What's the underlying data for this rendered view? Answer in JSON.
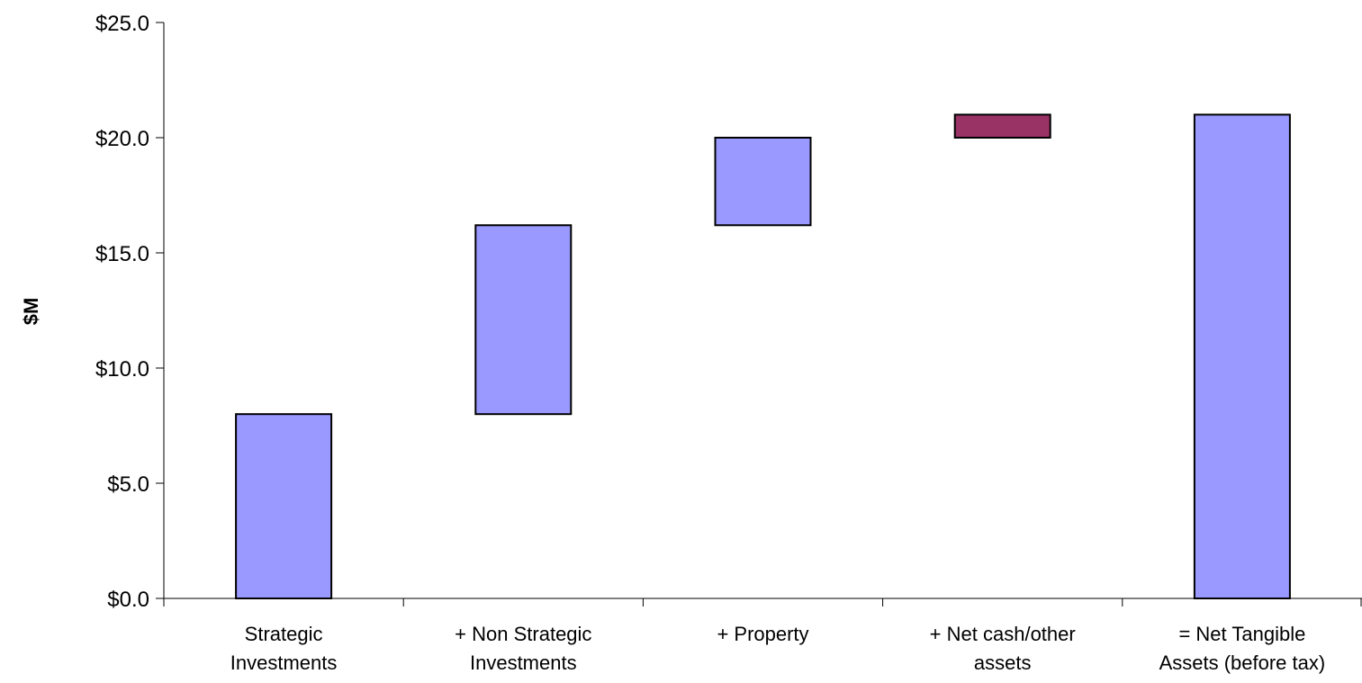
{
  "chart_data": {
    "type": "bar",
    "subtype": "waterfall",
    "title": "",
    "xlabel": "",
    "ylabel": "$M",
    "ylim": [
      0,
      25
    ],
    "yticks": [
      0,
      5,
      10,
      15,
      20,
      25
    ],
    "ytick_labels": [
      "$0.0",
      "$5.0",
      "$10.0",
      "$15.0",
      "$20.0",
      "$25.0"
    ],
    "grid": false,
    "legend": "none",
    "categories": [
      [
        "Strategic",
        "Investments"
      ],
      [
        "+ Non Strategic",
        "Investments"
      ],
      [
        "+ Property"
      ],
      [
        "+ Net cash/other",
        "assets"
      ],
      [
        "= Net Tangible",
        "Assets (before tax)"
      ]
    ],
    "bars": [
      {
        "start": 0.0,
        "end": 8.0,
        "value": 8.0,
        "color": "#9999ff"
      },
      {
        "start": 8.0,
        "end": 16.2,
        "value": 8.2,
        "color": "#9999ff"
      },
      {
        "start": 16.2,
        "end": 20.0,
        "value": 3.8,
        "color": "#9999ff"
      },
      {
        "start": 20.0,
        "end": 21.0,
        "value": 1.0,
        "color": "#993366"
      },
      {
        "start": 0.0,
        "end": 21.0,
        "value": 21.0,
        "color": "#9999ff"
      }
    ]
  }
}
